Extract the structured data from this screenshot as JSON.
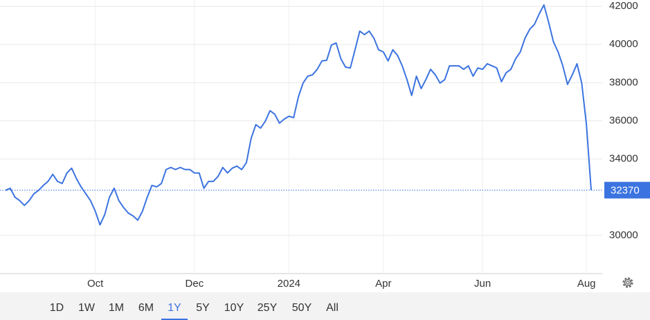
{
  "chart_data": {
    "type": "line",
    "categories": [
      null,
      null,
      null,
      null,
      null,
      null,
      null,
      null,
      null,
      null,
      null,
      null,
      null,
      null,
      null,
      null,
      null,
      null,
      null,
      "Oct",
      null,
      null,
      null,
      null,
      null,
      null,
      null,
      null,
      null,
      null,
      null,
      null,
      null,
      null,
      null,
      null,
      null,
      null,
      null,
      null,
      "Dec",
      null,
      null,
      null,
      null,
      null,
      null,
      null,
      null,
      null,
      null,
      null,
      null,
      null,
      null,
      null,
      null,
      null,
      null,
      null,
      "2024",
      null,
      null,
      null,
      null,
      null,
      null,
      null,
      null,
      null,
      null,
      null,
      null,
      null,
      null,
      null,
      null,
      null,
      null,
      null,
      "Apr",
      null,
      null,
      null,
      null,
      null,
      null,
      null,
      null,
      null,
      null,
      null,
      null,
      null,
      null,
      null,
      null,
      null,
      null,
      null,
      null,
      "Jun",
      null,
      null,
      null,
      null,
      null,
      null,
      null,
      null,
      null,
      null,
      null,
      null,
      null,
      null,
      null,
      null,
      null,
      null,
      null,
      null,
      null,
      "Aug",
      null
    ],
    "series": [
      {
        "color": "#3b73e0",
        "values": [
          32360,
          32470,
          32000,
          31820,
          31570,
          31820,
          32180,
          32360,
          32620,
          32830,
          33200,
          32830,
          32720,
          33270,
          33520,
          32980,
          32540,
          32180,
          31820,
          31270,
          30550,
          31090,
          32000,
          32470,
          31820,
          31460,
          31170,
          31020,
          30800,
          31270,
          32000,
          32620,
          32540,
          32720,
          33450,
          33560,
          33450,
          33560,
          33450,
          33450,
          33270,
          33270,
          32470,
          32830,
          32830,
          33090,
          33560,
          33270,
          33520,
          33630,
          33450,
          33810,
          35080,
          35800,
          35620,
          35980,
          36530,
          36350,
          35880,
          36090,
          36240,
          36170,
          37250,
          37980,
          38340,
          38410,
          38700,
          39140,
          39170,
          39970,
          40080,
          39250,
          38810,
          38770,
          39720,
          40700,
          40520,
          40700,
          40330,
          39720,
          39610,
          39140,
          39720,
          39430,
          38880,
          38160,
          37330,
          38340,
          37690,
          38160,
          38700,
          38410,
          37980,
          38160,
          38880,
          38880,
          38880,
          38700,
          38880,
          38340,
          38770,
          38700,
          38990,
          38880,
          38770,
          38050,
          38520,
          38700,
          39250,
          39610,
          40330,
          40800,
          41060,
          41600,
          42070,
          41160,
          40150,
          39610,
          38880,
          37910,
          38410,
          38990,
          37980,
          35800,
          32370
        ]
      }
    ],
    "ylim": [
      28000,
      42330
    ],
    "yticks": [
      30000,
      34000,
      36000,
      38000,
      40000,
      42000
    ],
    "grid": true
  },
  "range_buttons": [
    {
      "label": "1D"
    },
    {
      "label": "1W"
    },
    {
      "label": "1M"
    },
    {
      "label": "6M"
    },
    {
      "label": "1Y",
      "selected": true
    },
    {
      "label": "5Y"
    },
    {
      "label": "10Y"
    },
    {
      "label": "25Y"
    },
    {
      "label": "50Y"
    },
    {
      "label": "All"
    }
  ]
}
